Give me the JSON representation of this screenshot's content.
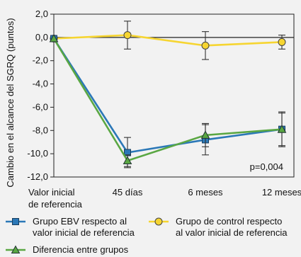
{
  "chart_data": {
    "type": "line",
    "ylabel": "Cambio en el alcance del SGRQ (puntos)",
    "categories": [
      "Valor inicial de referencia",
      "45 días",
      "6 meses",
      "12 meses"
    ],
    "x_tick_lines": [
      [
        "Valor inicial",
        "de referencia"
      ],
      [
        "45 días"
      ],
      [
        "6 meses"
      ],
      [
        "12 meses"
      ]
    ],
    "y_ticks": [
      "2,0",
      "0,0",
      "-2,0",
      "-4,0",
      "-6,0",
      "-8,0",
      "-10,0",
      "-12,0"
    ],
    "ylim": [
      -12,
      2
    ],
    "reference_line": 0,
    "annotation": "p=0,004",
    "series": [
      {
        "name": "Grupo EBV respecto al valor inicial de referencia",
        "legend_lines": [
          "Grupo EBV respecto al",
          "valor inicial de referencia"
        ],
        "marker": "square",
        "color": "#2b78b7",
        "values": [
          -0.1,
          -9.9,
          -8.8,
          -7.9
        ],
        "error": [
          0,
          1.3,
          1.3,
          1.4
        ]
      },
      {
        "name": "Grupo de control respecto al valor inicial de referencia",
        "legend_lines": [
          "Grupo de control respecto",
          "al valor inicial de referencia"
        ],
        "marker": "circle",
        "color": "#f6d531",
        "values": [
          -0.1,
          0.2,
          -0.7,
          -0.4
        ],
        "error": [
          0,
          1.2,
          1.2,
          0.6
        ]
      },
      {
        "name": "Diferencia entre grupos",
        "legend_lines": [
          "Diferencia entre grupos"
        ],
        "marker": "triangle",
        "color": "#5aa743",
        "values": [
          -0.1,
          -10.6,
          -8.4,
          -7.9
        ],
        "error": [
          0,
          0.5,
          1.0,
          1.5
        ]
      }
    ],
    "grid": false,
    "legend_position": "bottom"
  }
}
